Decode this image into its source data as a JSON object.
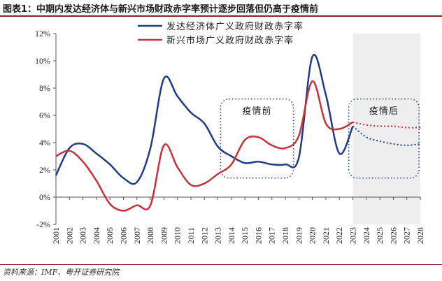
{
  "title": "图表1：中期内发达经济体与新兴市场财政赤字率预计逐步回落但仍高于疫情前",
  "source": "资料来源：IMF、粤开证券研究院",
  "chart_data": {
    "type": "line",
    "x": [
      2001,
      2002,
      2003,
      2004,
      2005,
      2006,
      2007,
      2008,
      2009,
      2010,
      2011,
      2012,
      2013,
      2014,
      2015,
      2016,
      2017,
      2018,
      2019,
      2020,
      2021,
      2022,
      2023,
      2024,
      2025,
      2026,
      2027,
      2028
    ],
    "x_labels": [
      "2001",
      "2002",
      "2003",
      "2004",
      "2005",
      "2006",
      "2007",
      "2008",
      "2009",
      "2010",
      "2011",
      "2012",
      "2013",
      "2014",
      "2015",
      "2016",
      "2017",
      "2018",
      "2019",
      "2020",
      "2021",
      "2022",
      "2023",
      "2024",
      "2025",
      "2026",
      "2027",
      "2028"
    ],
    "ylim": [
      -2,
      12
    ],
    "y_ticks": [
      -2,
      0,
      2,
      4,
      6,
      8,
      10,
      12
    ],
    "y_tick_labels": [
      "-2%",
      "0%",
      "2%",
      "4%",
      "6%",
      "8%",
      "10%",
      "12%"
    ],
    "forecast_start": 2023,
    "series": [
      {
        "name": "发达经济体广义政府财政赤字率",
        "color": "#1f3c88",
        "values": [
          1.6,
          3.6,
          3.9,
          3.2,
          2.4,
          1.4,
          1.1,
          3.6,
          8.7,
          7.4,
          6.2,
          5.4,
          3.7,
          3.0,
          2.5,
          2.6,
          2.4,
          2.4,
          2.9,
          10.3,
          7.5,
          3.2,
          5.2,
          4.4,
          4.1,
          3.9,
          3.8,
          3.9
        ]
      },
      {
        "name": "新兴市场广义政府财政赤字率",
        "color": "#c8323c",
        "values": [
          3.0,
          3.4,
          2.6,
          1.2,
          -0.5,
          -1.0,
          -0.6,
          -0.6,
          3.8,
          2.2,
          0.9,
          1.0,
          1.7,
          2.4,
          4.2,
          4.4,
          3.8,
          3.6,
          4.5,
          8.5,
          5.4,
          5.0,
          5.5,
          5.3,
          5.2,
          5.2,
          5.1,
          5.1
        ]
      }
    ],
    "annotations": [
      "疫情前",
      "疫情后"
    ]
  }
}
